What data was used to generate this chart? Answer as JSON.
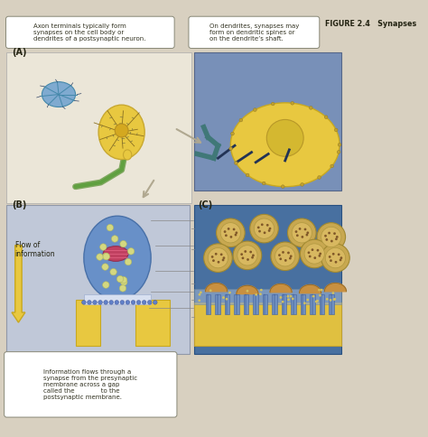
{
  "title": "FIGURE 2.4   Synapses",
  "background_color": "#d8d0c0",
  "text_box1": "Axon terminals typically form\nsynapses on the cell body or\ndendrites of a postsynaptic neuron.",
  "text_box2": "On dendrites, synapses may\nform on dendritic spines or\non the dendrite’s shaft.",
  "text_box3": "Information flows through a\nsynapse from the presynaptic\nmembrane across a gap\ncalled the             to the\npostsynaptic membrane.",
  "label_A": "(A)",
  "label_B": "(B)",
  "label_C": "(C)",
  "label_flow": "Flow of\ninformation",
  "panel_A_bg": "#ebe6d8",
  "panel_B_bg": "#c0c8d8",
  "panel_B_terminal": "#6890c8",
  "panel_B_post": "#e8c840",
  "panel_C_bg": "#4870a0",
  "panel_C_vesicle_outer": "#c8a850",
  "panel_C_vesicle_inner": "#d8b860",
  "panel_R_bg": "#7890b8",
  "panel_R_cell": "#e8c840",
  "arrow_color": "#b0a890",
  "flow_arrow_color": "#e8c840",
  "fig_width": 4.74,
  "fig_height": 4.84
}
